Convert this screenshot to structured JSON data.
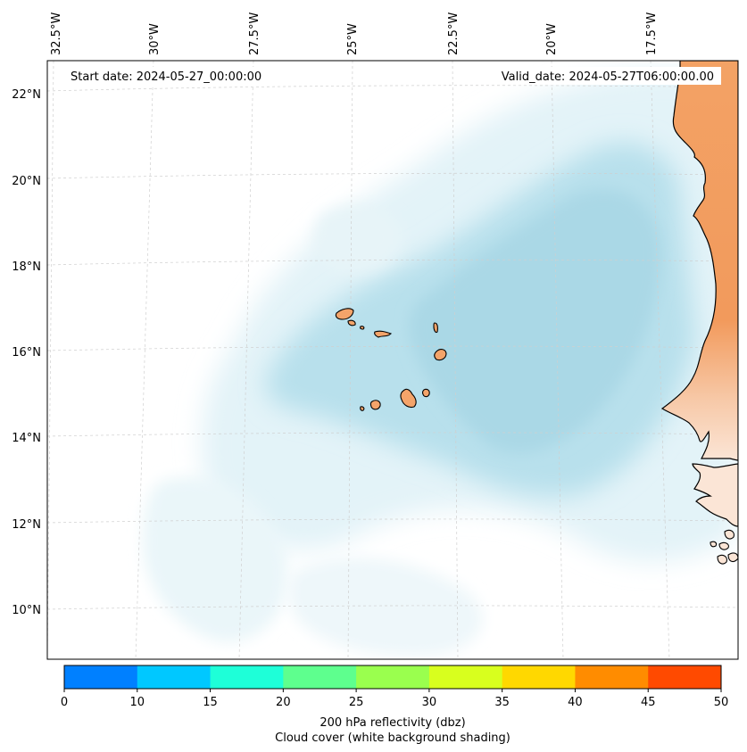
{
  "map": {
    "start_date_label": "Start date: 2024-05-27_00:00:00",
    "valid_date_label": "Valid_date: 2024-05-27T06:00:00.00",
    "longitude_labels": [
      "32.5°W",
      "30°W",
      "27.5°W",
      "25°W",
      "22.5°W",
      "20°W",
      "17.5°W"
    ],
    "latitude_labels": [
      "22°N",
      "20°N",
      "18°N",
      "16°N",
      "14°N",
      "12°N",
      "10°N"
    ],
    "land_color": "#f4a46a",
    "cloud_color": "#a9d8e6",
    "coast_color": "#000000"
  },
  "colorbar": {
    "ticks": [
      "0",
      "10",
      "15",
      "20",
      "25",
      "30",
      "35",
      "40",
      "45",
      "50"
    ],
    "colors": [
      "#0080ff",
      "#00c8ff",
      "#1effd8",
      "#5eff8e",
      "#9aff4e",
      "#d8ff1e",
      "#ffd800",
      "#ff8c00",
      "#ff4a00"
    ],
    "title": "200 hPa reflectivity (dbz)",
    "subtitle": "Cloud cover (white background shading)"
  }
}
